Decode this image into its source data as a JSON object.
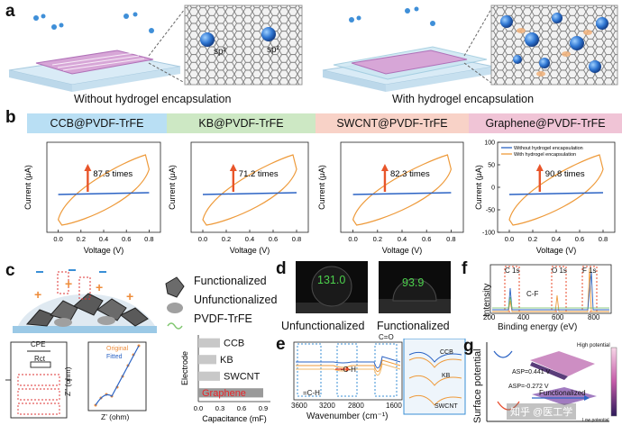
{
  "panel_a": {
    "label": "a",
    "sp2_label": "sp²",
    "left_caption": "Without hydrogel encapsulation",
    "right_caption": "With hydrogel encapsulation"
  },
  "panel_b": {
    "label": "b",
    "headers": [
      {
        "text": "CCB@PVDF-TrFE",
        "color": "#b9dff4"
      },
      {
        "text": "KB@PVDF-TrFE",
        "color": "#cde8c4"
      },
      {
        "text": "SWCNT@PVDF-TrFE",
        "color": "#f8d2c7"
      },
      {
        "text": "Graphene@PVDF-TrFE",
        "color": "#f0c4d6"
      }
    ],
    "xlabel": "Voltage (V)",
    "ylabel": "Current (μA)",
    "legend": [
      "Without hydrogel encapsulation",
      "With hydrogel encapsulation"
    ],
    "series_colors": {
      "without": "#2b63c4",
      "with": "#ee9a3a"
    },
    "xticks": [
      "0.0",
      "0.2",
      "0.4",
      "0.6",
      "0.8"
    ]
  },
  "chart_data": [
    {
      "type": "line",
      "title": "CCB@PVDF-TrFE",
      "xlabel": "Voltage (V)",
      "ylabel": "Current (μA)",
      "xlim": [
        -0.1,
        0.9
      ],
      "xticks": [
        0.0,
        0.2,
        0.4,
        0.6,
        0.8
      ],
      "yticks": [],
      "annotation": "87.5 times"
    },
    {
      "type": "line",
      "title": "KB@PVDF-TrFE",
      "xlabel": "Voltage (V)",
      "ylabel": "Current (μA)",
      "xlim": [
        -0.1,
        0.9
      ],
      "xticks": [
        0.0,
        0.2,
        0.4,
        0.6,
        0.8
      ],
      "yticks": [],
      "annotation": "71.2 times"
    },
    {
      "type": "line",
      "title": "SWCNT@PVDF-TrFE",
      "xlabel": "Voltage (V)",
      "ylabel": "Current (μA)",
      "xlim": [
        -0.1,
        0.9
      ],
      "xticks": [
        0.0,
        0.2,
        0.4,
        0.6,
        0.8
      ],
      "yticks": [],
      "annotation": "82.3 times"
    },
    {
      "type": "line",
      "title": "Graphene@PVDF-TrFE",
      "xlabel": "Voltage (V)",
      "ylabel": "Current (μA)",
      "xlim": [
        -0.1,
        0.9
      ],
      "ylim": [
        -100,
        100
      ],
      "xticks": [
        0.0,
        0.2,
        0.4,
        0.6,
        0.8
      ],
      "yticks": [
        -100,
        -50,
        0,
        50,
        100
      ],
      "annotation": "90.8 times",
      "legend": [
        "Without hydrogel encapsulation",
        "With hydrogel encapsulation"
      ]
    },
    {
      "type": "bar",
      "title": "",
      "xlabel": "Capacitance (mF)",
      "ylabel": "Electrode",
      "categories": [
        "CCB",
        "KB",
        "SWCNT",
        "Graphene"
      ],
      "values": [
        0.3,
        0.25,
        0.3,
        0.9
      ],
      "xlim": [
        0,
        1.0
      ],
      "xticks": [
        0.0,
        0.3,
        0.6,
        0.9
      ]
    },
    {
      "type": "line",
      "title": "",
      "xlabel": "Wavenumber (cm⁻¹)",
      "ylabel": "",
      "xticks": [
        3600,
        3200,
        2800,
        1600
      ],
      "annotations": [
        "=C-H",
        "-C-H",
        "C=O"
      ]
    },
    {
      "type": "line",
      "title": "",
      "xlabel": "Binding energy (eV)",
      "ylabel": "Intensity",
      "xlim": [
        200,
        800
      ],
      "xticks": [
        200,
        400,
        600,
        800
      ],
      "annotations": [
        "C 1s",
        "C-F",
        "O 1s",
        "F 1s"
      ]
    }
  ],
  "panel_c": {
    "label": "c",
    "legend": [
      "Functionalized",
      "Unfunctionalized",
      "PVDF-TrFE"
    ],
    "circuit": {
      "cpe": "CPE",
      "rct": "Rct"
    },
    "nyquist": {
      "xlabel": "Z’ (ohm)",
      "ylabel": "Z” (ohm)",
      "legend": [
        "Original",
        "Fitted"
      ]
    },
    "bar_labels": [
      "CCB",
      "KB",
      "SWCNT",
      "Graphene"
    ],
    "bar_xlabel": "Capacitance (mF)",
    "bar_ylabel": "Electrode",
    "bar_xticks": [
      "0.0",
      "0.3",
      "0.6",
      "0.9"
    ]
  },
  "panel_d": {
    "label": "d",
    "angles": [
      "131.0",
      "93.9"
    ],
    "captions": [
      "Unfunctionalized",
      "Functionalized"
    ]
  },
  "panel_e": {
    "label": "e",
    "annotations": [
      "=C-H",
      "-C-H",
      "C=O"
    ],
    "xticks": [
      "3600",
      "3200",
      "2800",
      "1600"
    ],
    "xlabel": "Wavenumber (cm⁻¹)",
    "inset_labels": [
      "CCB",
      "KB",
      "SWCNT"
    ]
  },
  "panel_f": {
    "label": "f",
    "peaks": [
      "C 1s",
      "O 1s",
      "F 1s",
      "C-F"
    ],
    "ylabel": "Intensity",
    "xticks": [
      "200",
      "400",
      "600",
      "800"
    ],
    "xlabel": "Binding energy (eV)"
  },
  "panel_g": {
    "label": "g",
    "ylabel": "Surface potential",
    "asp1": "ASP=0.441 V",
    "asp2": "ASP=-0.272 V",
    "functionalized": "Functionalized",
    "high": "High potential",
    "low": "Low potential"
  },
  "watermark": "知乎 @医工学"
}
